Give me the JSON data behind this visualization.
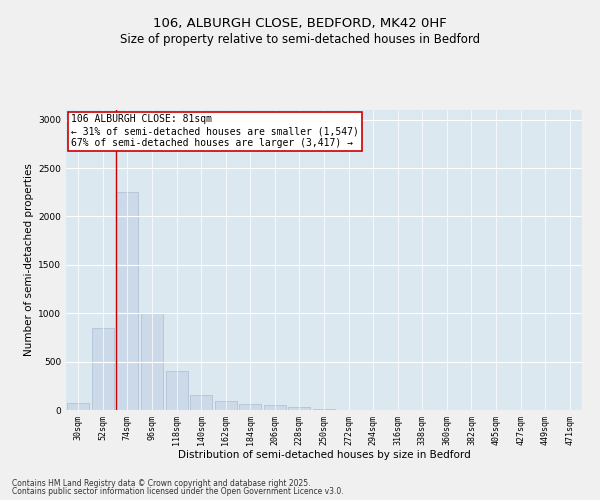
{
  "title_line1": "106, ALBURGH CLOSE, BEDFORD, MK42 0HF",
  "title_line2": "Size of property relative to semi-detached houses in Bedford",
  "xlabel": "Distribution of semi-detached houses by size in Bedford",
  "ylabel": "Number of semi-detached properties",
  "bar_color": "#ccd9e8",
  "bar_edge_color": "#a8bdd0",
  "background_color": "#dce8f0",
  "grid_color": "#ffffff",
  "fig_facecolor": "#f0f0f0",
  "categories": [
    "30sqm",
    "52sqm",
    "74sqm",
    "96sqm",
    "118sqm",
    "140sqm",
    "162sqm",
    "184sqm",
    "206sqm",
    "228sqm",
    "250sqm",
    "272sqm",
    "294sqm",
    "316sqm",
    "338sqm",
    "360sqm",
    "382sqm",
    "405sqm",
    "427sqm",
    "449sqm",
    "471sqm"
  ],
  "values": [
    75,
    850,
    2250,
    1000,
    400,
    160,
    90,
    65,
    50,
    30,
    10,
    3,
    2,
    1,
    1,
    0,
    0,
    0,
    0,
    0,
    0
  ],
  "ylim": [
    0,
    3100
  ],
  "yticks": [
    0,
    500,
    1000,
    1500,
    2000,
    2500,
    3000
  ],
  "annotation_line1": "106 ALBURGH CLOSE: 81sqm",
  "annotation_line2": "← 31% of semi-detached houses are smaller (1,547)",
  "annotation_line3": "67% of semi-detached houses are larger (3,417) →",
  "vline_color": "#cc0000",
  "annotation_box_edge": "#cc0000",
  "vline_bin": 2,
  "footer_line1": "Contains HM Land Registry data © Crown copyright and database right 2025.",
  "footer_line2": "Contains public sector information licensed under the Open Government Licence v3.0.",
  "title_fontsize": 9.5,
  "subtitle_fontsize": 8.5,
  "axis_label_fontsize": 7.5,
  "tick_fontsize": 6.0,
  "annotation_fontsize": 7.0,
  "footer_fontsize": 5.5
}
